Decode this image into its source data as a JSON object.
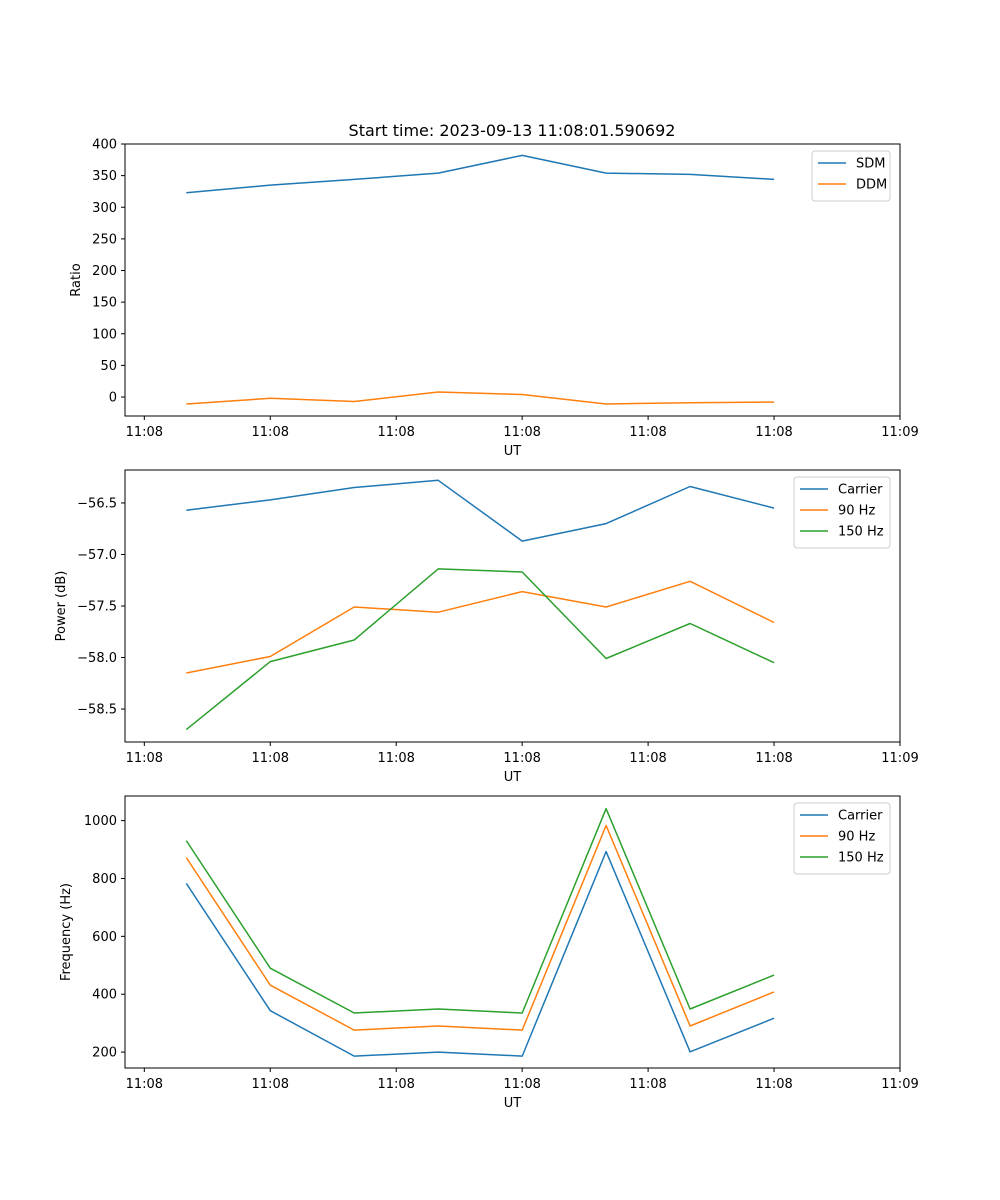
{
  "figure": {
    "title": "Start time: 2023-09-13 11:08:01.590692"
  },
  "chart_data": [
    {
      "type": "line",
      "title": "Start time: 2023-09-13 11:08:01.590692",
      "xlabel": "UT",
      "ylabel": "Ratio",
      "x": [
        1,
        2,
        3,
        4,
        5,
        6,
        7,
        8
      ],
      "xlim": [
        0.27,
        9.5
      ],
      "xticks": [
        0.5,
        2,
        3.5,
        5,
        6.5,
        8,
        9.5
      ],
      "xtick_labels": [
        "11:08",
        "11:08",
        "11:08",
        "11:08",
        "11:08",
        "11:08",
        "11:09"
      ],
      "ylim": [
        -30,
        400
      ],
      "yticks": [
        0,
        50,
        100,
        150,
        200,
        250,
        300,
        350,
        400
      ],
      "yticklabels": [
        "0",
        "50",
        "100",
        "150",
        "200",
        "250",
        "300",
        "350",
        "400"
      ],
      "legend_position": "top-right",
      "series": [
        {
          "name": "SDM",
          "color": "#1f77b4",
          "values": [
            323,
            335,
            344,
            354,
            382,
            354,
            352,
            344
          ]
        },
        {
          "name": "DDM",
          "color": "#ff7f0e",
          "values": [
            -11,
            -2,
            -7,
            8,
            4,
            -11,
            -9,
            -8
          ]
        }
      ]
    },
    {
      "type": "line",
      "xlabel": "UT",
      "ylabel": "Power (dB)",
      "x": [
        1,
        2,
        3,
        4,
        5,
        6,
        7,
        8
      ],
      "xlim": [
        0.27,
        9.5
      ],
      "xticks": [
        0.5,
        2,
        3.5,
        5,
        6.5,
        8,
        9.5
      ],
      "xtick_labels": [
        "11:08",
        "11:08",
        "11:08",
        "11:08",
        "11:08",
        "11:08",
        "11:09"
      ],
      "ylim": [
        -58.82,
        -56.18
      ],
      "yticks": [
        -58.5,
        -58.0,
        -57.5,
        -57.0,
        -56.5
      ],
      "yticklabels": [
        "−58.5",
        "−58.0",
        "−57.5",
        "−57.0",
        "−56.5"
      ],
      "legend_position": "top-right",
      "series": [
        {
          "name": "Carrier",
          "color": "#1f77b4",
          "values": [
            -56.57,
            -56.47,
            -56.35,
            -56.28,
            -56.87,
            -56.7,
            -56.34,
            -56.55
          ]
        },
        {
          "name": "90 Hz",
          "color": "#ff7f0e",
          "values": [
            -58.15,
            -57.99,
            -57.51,
            -57.56,
            -57.36,
            -57.51,
            -57.26,
            -57.66
          ]
        },
        {
          "name": "150 Hz",
          "color": "#2ca02c",
          "values": [
            -58.7,
            -58.04,
            -57.83,
            -57.14,
            -57.17,
            -58.01,
            -57.67,
            -58.05
          ]
        }
      ]
    },
    {
      "type": "line",
      "xlabel": "UT",
      "ylabel": "Frequency (Hz)",
      "x": [
        1,
        2,
        3,
        4,
        5,
        6,
        7,
        8
      ],
      "xlim": [
        0.27,
        9.5
      ],
      "xticks": [
        0.5,
        2,
        3.5,
        5,
        6.5,
        8,
        9.5
      ],
      "xtick_labels": [
        "11:08",
        "11:08",
        "11:08",
        "11:08",
        "11:08",
        "11:08",
        "11:09"
      ],
      "ylim": [
        145,
        1085
      ],
      "yticks": [
        200,
        400,
        600,
        800,
        1000
      ],
      "yticklabels": [
        "200",
        "400",
        "600",
        "800",
        "1000"
      ],
      "legend_position": "top-right",
      "series": [
        {
          "name": "Carrier",
          "color": "#1f77b4",
          "values": [
            783,
            343,
            186,
            200,
            186,
            893,
            201,
            317
          ]
        },
        {
          "name": "90 Hz",
          "color": "#ff7f0e",
          "values": [
            872,
            431,
            276,
            290,
            276,
            983,
            290,
            408
          ]
        },
        {
          "name": "150 Hz",
          "color": "#2ca02c",
          "values": [
            931,
            490,
            335,
            349,
            335,
            1041,
            349,
            466
          ]
        }
      ]
    }
  ]
}
